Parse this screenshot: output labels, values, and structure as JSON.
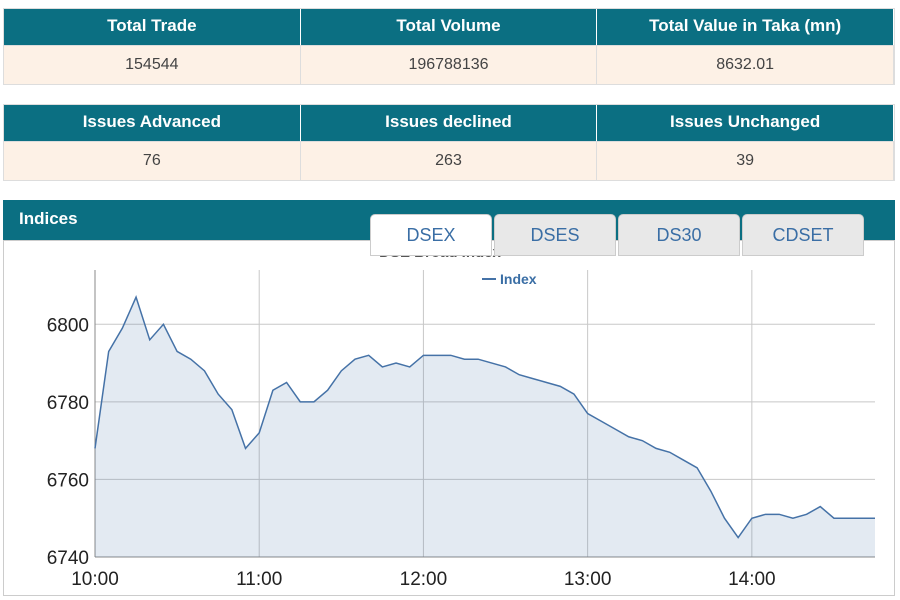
{
  "stats": [
    {
      "headers": [
        "Total Trade",
        "Total Volume",
        "Total Value in Taka (mn)"
      ],
      "values": [
        154544,
        196788136,
        8632.01
      ]
    },
    {
      "headers": [
        "Issues Advanced",
        "Issues declined",
        "Issues Unchanged"
      ],
      "values": [
        76,
        263,
        39
      ]
    }
  ],
  "indices": {
    "title": "Indices",
    "tabs": [
      "DSEX",
      "DSES",
      "DS30",
      "CDSET"
    ]
  },
  "chart_data": {
    "type": "area",
    "title": "DSE Broad Index",
    "x": [
      "10:00",
      "10:05",
      "10:10",
      "10:15",
      "10:20",
      "10:25",
      "10:30",
      "10:35",
      "10:40",
      "10:45",
      "10:50",
      "10:55",
      "11:00",
      "11:05",
      "11:10",
      "11:15",
      "11:20",
      "11:25",
      "11:30",
      "11:35",
      "11:40",
      "11:45",
      "11:50",
      "11:55",
      "12:00",
      "12:05",
      "12:10",
      "12:15",
      "12:20",
      "12:25",
      "12:30",
      "12:35",
      "12:40",
      "12:45",
      "12:50",
      "12:55",
      "13:00",
      "13:05",
      "13:10",
      "13:15",
      "13:20",
      "13:25",
      "13:30",
      "13:35",
      "13:40",
      "13:45",
      "13:50",
      "13:55",
      "14:00",
      "14:05",
      "14:10",
      "14:15",
      "14:20",
      "14:25",
      "14:30",
      "14:35",
      "14:40",
      "14:45"
    ],
    "series": [
      {
        "name": "Index",
        "color": "#4572a7",
        "values": [
          6768,
          6793,
          6799,
          6807,
          6796,
          6800,
          6793,
          6791,
          6788,
          6782,
          6778,
          6768,
          6772,
          6783,
          6785,
          6780,
          6780,
          6783,
          6788,
          6791,
          6792,
          6789,
          6790,
          6789,
          6792,
          6792,
          6792,
          6791,
          6791,
          6790,
          6789,
          6787,
          6786,
          6785,
          6784,
          6782,
          6777,
          6775,
          6773,
          6771,
          6770,
          6768,
          6767,
          6765,
          6763,
          6757,
          6750,
          6745,
          6750,
          6751,
          6751,
          6750,
          6751,
          6753,
          6750,
          6750,
          6750,
          6750
        ]
      }
    ],
    "xlim": [
      "10:00",
      "14:45"
    ],
    "xticks": [
      "10:00",
      "11:00",
      "12:00",
      "13:00",
      "14:00"
    ],
    "ylim": [
      6740,
      6814
    ],
    "yticks": [
      6740,
      6760,
      6780,
      6800
    ],
    "grid": true
  }
}
